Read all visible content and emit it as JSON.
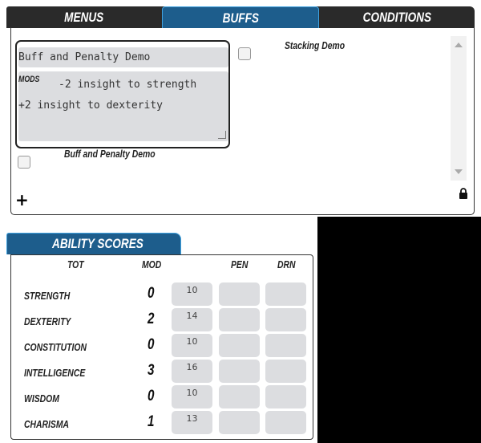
{
  "tabs": [
    {
      "label": "MENUS",
      "active": false
    },
    {
      "label": "BUFFS",
      "active": true
    },
    {
      "label": "CONDITIONS",
      "active": false
    }
  ],
  "buffs": {
    "card": {
      "name": "Buff and Penalty Demo",
      "mods_label": "MODS",
      "mods": "-2 insight to strength\n+2 insight to dexterity",
      "checked": false
    },
    "items": [
      {
        "label": "Stacking Demo",
        "checked": false
      },
      {
        "label": "Buff and Penalty Demo",
        "checked": false
      }
    ],
    "add_icon": "plus-icon",
    "lock_icon": "lock-icon"
  },
  "ability_scores": {
    "title": "ABILITY SCORES",
    "headers": {
      "tot": "TOT",
      "mod": "MOD",
      "pen": "PEN",
      "drn": "DRN"
    },
    "rows": [
      {
        "name": "STRENGTH",
        "mod": "0",
        "score": "10",
        "pen": "",
        "drn": ""
      },
      {
        "name": "DEXTERITY",
        "mod": "2",
        "score": "14",
        "pen": "",
        "drn": ""
      },
      {
        "name": "CONSTITUTION",
        "mod": "0",
        "score": "10",
        "pen": "",
        "drn": ""
      },
      {
        "name": "INTELLIGENCE",
        "mod": "3",
        "score": "16",
        "pen": "",
        "drn": ""
      },
      {
        "name": "WISDOM",
        "mod": "0",
        "score": "10",
        "pen": "",
        "drn": ""
      },
      {
        "name": "CHARISMA",
        "mod": "1",
        "score": "13",
        "pen": "",
        "drn": ""
      }
    ]
  },
  "colors": {
    "tab_bar": "#2a2a2a",
    "active_tab": "#1d5d8c",
    "active_border": "#3fa2e0",
    "field": "#dcdde0"
  }
}
